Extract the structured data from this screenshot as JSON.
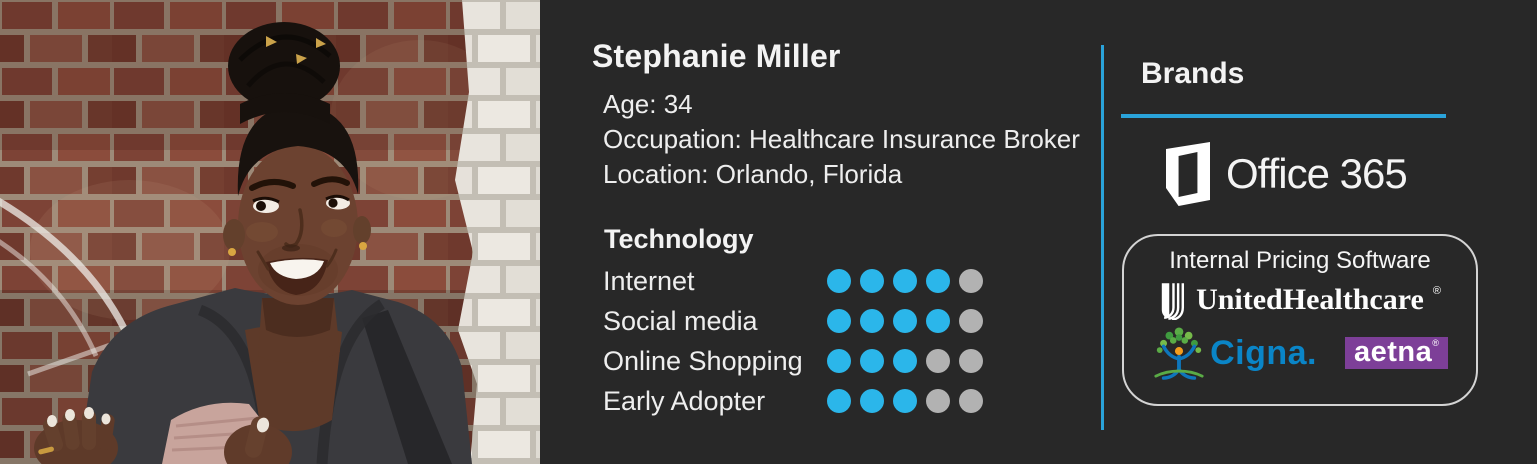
{
  "colors": {
    "panel_bg": "#282828",
    "accent_blue": "#2aa3da",
    "dot_active": "#2bb6ea",
    "dot_inactive": "#b2b2b2",
    "cigna_blue": "#0a85c7",
    "aetna_purple": "#7d3f98"
  },
  "persona": {
    "name": "Stephanie Miller",
    "details": [
      "Age: 34",
      "Occupation: Healthcare Insurance Broker",
      "Location: Orlando, Florida"
    ]
  },
  "technology": {
    "heading": "Technology",
    "max_rating": 5,
    "items": [
      {
        "label": "Internet",
        "rating": 4
      },
      {
        "label": "Social media",
        "rating": 4
      },
      {
        "label": "Online Shopping",
        "rating": 3
      },
      {
        "label": "Early Adopter",
        "rating": 3
      }
    ]
  },
  "brands": {
    "heading": "Brands",
    "office_label": "Office 365",
    "pricing_box": {
      "title": "Internal Pricing Software",
      "logos": [
        {
          "name": "UnitedHealthcare",
          "text": "UnitedHealthcare",
          "reg_mark": "®"
        },
        {
          "name": "Cigna",
          "text": "Cigna."
        },
        {
          "name": "aetna",
          "text": "aetna",
          "reg_mark": "®"
        }
      ]
    }
  }
}
